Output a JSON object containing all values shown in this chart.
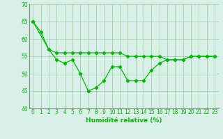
{
  "line1": {
    "x": [
      0,
      1,
      2,
      3,
      4,
      5,
      6,
      7,
      8,
      9,
      10,
      11,
      12,
      13,
      14,
      15,
      16,
      17,
      18,
      19,
      20,
      21,
      22,
      23
    ],
    "y": [
      65,
      62,
      57,
      54,
      53,
      54,
      50,
      45,
      46,
      48,
      52,
      52,
      48,
      48,
      48,
      51,
      53,
      54,
      54,
      54,
      55,
      55,
      55,
      55
    ]
  },
  "line2": {
    "x": [
      0,
      2,
      3,
      4,
      5,
      6,
      7,
      8,
      9,
      10,
      11,
      12,
      13,
      14,
      15,
      16,
      17,
      18,
      19,
      20,
      21,
      22,
      23
    ],
    "y": [
      65,
      57,
      56,
      56,
      56,
      56,
      56,
      56,
      56,
      56,
      56,
      55,
      55,
      55,
      55,
      55,
      54,
      54,
      54,
      55,
      55,
      55,
      55
    ]
  },
  "line_color": "#00bb00",
  "bg_color": "#d8f0e8",
  "grid_color": "#99cc99",
  "xlabel": "Humidité relative (%)",
  "ylim": [
    40,
    70
  ],
  "xlim": [
    -0.5,
    23.5
  ],
  "yticks": [
    40,
    45,
    50,
    55,
    60,
    65,
    70
  ],
  "xticks": [
    0,
    1,
    2,
    3,
    4,
    5,
    6,
    7,
    8,
    9,
    10,
    11,
    12,
    13,
    14,
    15,
    16,
    17,
    18,
    19,
    20,
    21,
    22,
    23
  ],
  "tick_fontsize": 5.5,
  "xlabel_fontsize": 6.5,
  "marker_size": 2.2,
  "linewidth": 0.9
}
